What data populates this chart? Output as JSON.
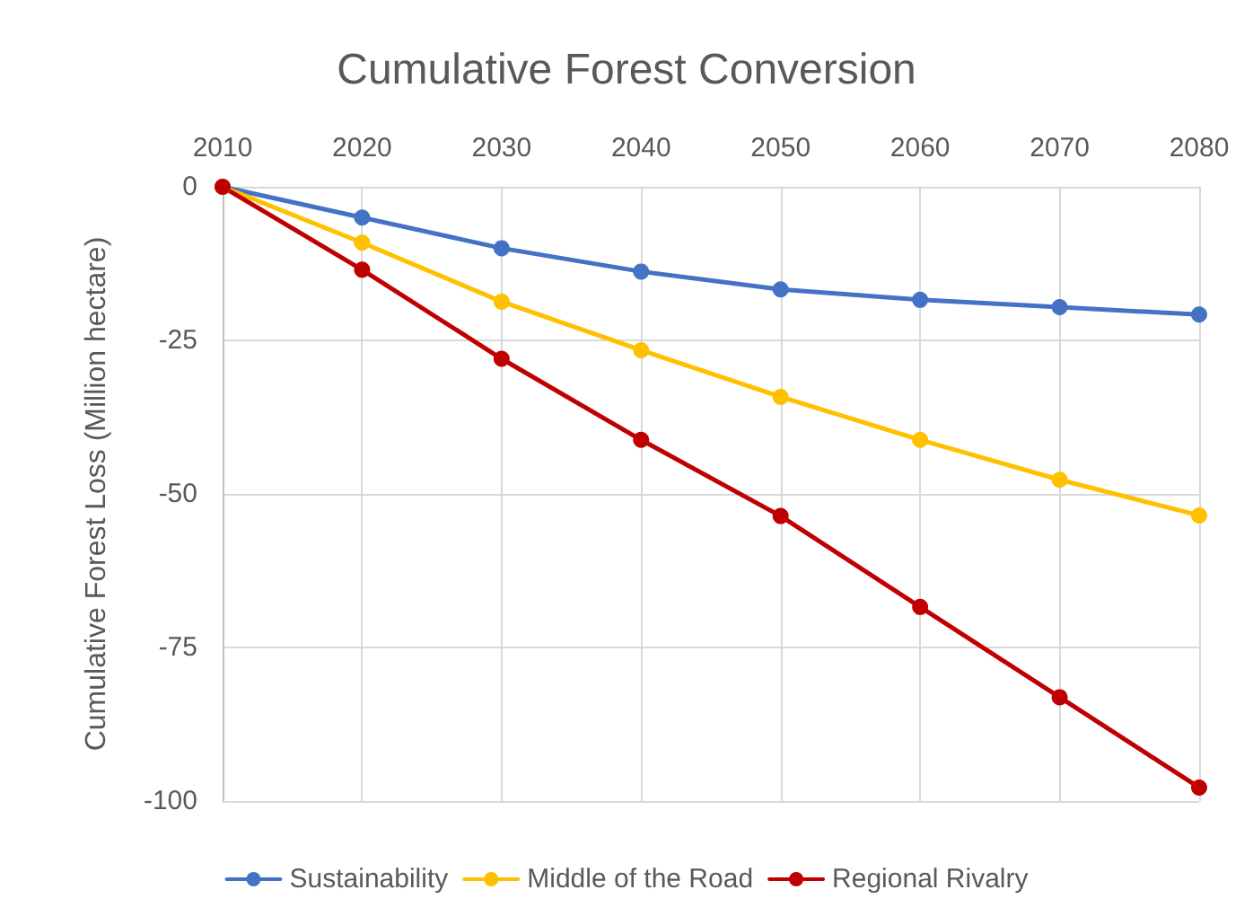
{
  "chart_data": {
    "type": "line",
    "title": "Cumulative Forest Conversion",
    "ylabel": "Cumulative Forest Loss (Million hectare)",
    "categories": [
      "2010",
      "2020",
      "2030",
      "2040",
      "2050",
      "2060",
      "2070",
      "2080"
    ],
    "series": [
      {
        "name": "Sustainability",
        "color": "#4472c4",
        "values": [
          0,
          -5.0,
          -10.0,
          -13.8,
          -16.7,
          -18.4,
          -19.6,
          -20.8
        ]
      },
      {
        "name": "Middle of the Road",
        "color": "#ffc000",
        "values": [
          0,
          -9.1,
          -18.7,
          -26.6,
          -34.2,
          -41.2,
          -47.7,
          -53.5
        ]
      },
      {
        "name": "Regional Rivalry",
        "color": "#c00000",
        "values": [
          0,
          -13.5,
          -28.0,
          -41.2,
          -53.6,
          -68.4,
          -83.1,
          -97.8
        ]
      }
    ],
    "ylim": [
      -100,
      0
    ],
    "yticks": [
      -100,
      -75,
      -50,
      -25,
      0
    ],
    "grid": true,
    "legend": "bottom",
    "marker": "circle",
    "line_style": "solid"
  }
}
